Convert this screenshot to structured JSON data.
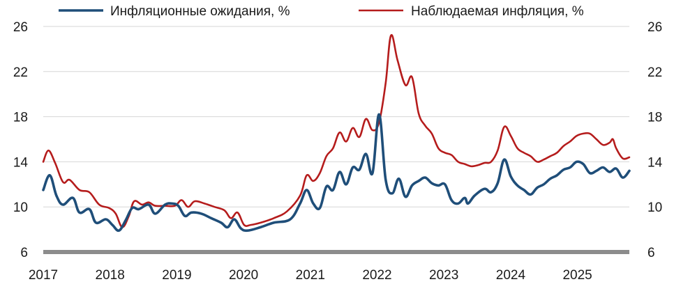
{
  "chart_data": {
    "type": "line",
    "title": "",
    "xlabel": "",
    "ylabel": "",
    "ylim": [
      6,
      26
    ],
    "y_ticks": [
      "6",
      "10",
      "14",
      "18",
      "22",
      "26"
    ],
    "x_ticks": [
      "2017",
      "2018",
      "2019",
      "2020",
      "2021",
      "2022",
      "2023",
      "2024",
      "2025"
    ],
    "xlim": [
      2017.0,
      2025.9
    ],
    "grid": "horizontal",
    "legend": "top",
    "series": [
      {
        "name": "Инфляционные ожидания, %",
        "color": "#1f4e79",
        "points": [
          [
            2017.0,
            11.5
          ],
          [
            2017.1,
            12.8
          ],
          [
            2017.2,
            11.0
          ],
          [
            2017.3,
            10.2
          ],
          [
            2017.45,
            10.8
          ],
          [
            2017.55,
            9.5
          ],
          [
            2017.7,
            9.8
          ],
          [
            2017.8,
            8.6
          ],
          [
            2017.95,
            8.9
          ],
          [
            2018.05,
            8.4
          ],
          [
            2018.15,
            7.9
          ],
          [
            2018.25,
            8.8
          ],
          [
            2018.35,
            9.9
          ],
          [
            2018.45,
            9.8
          ],
          [
            2018.6,
            10.2
          ],
          [
            2018.7,
            9.4
          ],
          [
            2018.85,
            10.2
          ],
          [
            2018.95,
            10.3
          ],
          [
            2019.05,
            10.1
          ],
          [
            2019.15,
            9.2
          ],
          [
            2019.25,
            9.5
          ],
          [
            2019.4,
            9.4
          ],
          [
            2019.55,
            9.0
          ],
          [
            2019.7,
            8.6
          ],
          [
            2019.8,
            8.2
          ],
          [
            2019.9,
            8.9
          ],
          [
            2020.0,
            8.1
          ],
          [
            2020.1,
            7.9
          ],
          [
            2020.3,
            8.2
          ],
          [
            2020.5,
            8.6
          ],
          [
            2020.75,
            8.9
          ],
          [
            2020.9,
            10.3
          ],
          [
            2021.0,
            11.5
          ],
          [
            2021.1,
            10.3
          ],
          [
            2021.2,
            9.9
          ],
          [
            2021.3,
            11.8
          ],
          [
            2021.4,
            11.5
          ],
          [
            2021.5,
            13.1
          ],
          [
            2021.6,
            12.0
          ],
          [
            2021.7,
            13.5
          ],
          [
            2021.8,
            13.3
          ],
          [
            2021.9,
            14.7
          ],
          [
            2022.0,
            13.0
          ],
          [
            2022.1,
            18.2
          ],
          [
            2022.2,
            12.4
          ],
          [
            2022.3,
            11.2
          ],
          [
            2022.4,
            12.5
          ],
          [
            2022.5,
            10.9
          ],
          [
            2022.6,
            11.9
          ],
          [
            2022.7,
            12.3
          ],
          [
            2022.8,
            12.6
          ],
          [
            2022.9,
            12.1
          ],
          [
            2023.0,
            11.9
          ],
          [
            2023.1,
            12.0
          ],
          [
            2023.2,
            10.6
          ],
          [
            2023.3,
            10.3
          ],
          [
            2023.4,
            10.8
          ],
          [
            2023.45,
            10.3
          ],
          [
            2023.55,
            11.0
          ],
          [
            2023.7,
            11.6
          ],
          [
            2023.8,
            11.3
          ],
          [
            2023.9,
            12.1
          ],
          [
            2024.0,
            14.2
          ],
          [
            2024.1,
            12.7
          ],
          [
            2024.2,
            11.9
          ],
          [
            2024.3,
            11.5
          ],
          [
            2024.4,
            11.1
          ],
          [
            2024.5,
            11.7
          ],
          [
            2024.6,
            12.0
          ],
          [
            2024.7,
            12.5
          ],
          [
            2024.8,
            12.8
          ],
          [
            2024.9,
            13.3
          ],
          [
            2025.0,
            13.5
          ],
          [
            2025.1,
            14.0
          ],
          [
            2025.2,
            13.8
          ],
          [
            2025.3,
            13.0
          ],
          [
            2025.4,
            13.2
          ],
          [
            2025.5,
            13.5
          ],
          [
            2025.6,
            13.1
          ],
          [
            2025.7,
            13.4
          ],
          [
            2025.8,
            12.6
          ],
          [
            2025.9,
            13.2
          ]
        ]
      },
      {
        "name": "Наблюдаемая инфляция, %",
        "color": "#b51c1c",
        "points": [
          [
            2017.0,
            14.0
          ],
          [
            2017.08,
            15.0
          ],
          [
            2017.18,
            13.9
          ],
          [
            2017.3,
            12.2
          ],
          [
            2017.4,
            12.4
          ],
          [
            2017.55,
            11.5
          ],
          [
            2017.7,
            11.3
          ],
          [
            2017.85,
            10.2
          ],
          [
            2018.0,
            9.9
          ],
          [
            2018.1,
            9.4
          ],
          [
            2018.2,
            8.2
          ],
          [
            2018.3,
            9.2
          ],
          [
            2018.38,
            10.5
          ],
          [
            2018.5,
            10.2
          ],
          [
            2018.6,
            10.4
          ],
          [
            2018.7,
            10.1
          ],
          [
            2018.85,
            10.1
          ],
          [
            2019.0,
            10.1
          ],
          [
            2019.1,
            10.6
          ],
          [
            2019.2,
            10.0
          ],
          [
            2019.3,
            10.5
          ],
          [
            2019.45,
            10.3
          ],
          [
            2019.6,
            10.0
          ],
          [
            2019.75,
            9.7
          ],
          [
            2019.85,
            9.0
          ],
          [
            2019.95,
            9.5
          ],
          [
            2020.05,
            8.4
          ],
          [
            2020.15,
            8.4
          ],
          [
            2020.3,
            8.6
          ],
          [
            2020.5,
            9.0
          ],
          [
            2020.7,
            9.6
          ],
          [
            2020.9,
            11.0
          ],
          [
            2021.0,
            12.8
          ],
          [
            2021.1,
            12.3
          ],
          [
            2021.2,
            13.0
          ],
          [
            2021.3,
            14.5
          ],
          [
            2021.4,
            15.2
          ],
          [
            2021.5,
            16.6
          ],
          [
            2021.6,
            15.8
          ],
          [
            2021.7,
            17.0
          ],
          [
            2021.8,
            16.2
          ],
          [
            2021.9,
            17.8
          ],
          [
            2022.0,
            16.8
          ],
          [
            2022.1,
            17.5
          ],
          [
            2022.2,
            21.0
          ],
          [
            2022.28,
            25.2
          ],
          [
            2022.38,
            23.0
          ],
          [
            2022.5,
            20.8
          ],
          [
            2022.6,
            21.5
          ],
          [
            2022.7,
            18.3
          ],
          [
            2022.8,
            17.2
          ],
          [
            2022.9,
            16.5
          ],
          [
            2023.0,
            15.2
          ],
          [
            2023.1,
            14.8
          ],
          [
            2023.2,
            14.6
          ],
          [
            2023.3,
            14.0
          ],
          [
            2023.4,
            13.8
          ],
          [
            2023.5,
            13.6
          ],
          [
            2023.6,
            13.7
          ],
          [
            2023.7,
            13.9
          ],
          [
            2023.8,
            14.0
          ],
          [
            2023.9,
            15.0
          ],
          [
            2024.0,
            17.1
          ],
          [
            2024.1,
            16.3
          ],
          [
            2024.2,
            15.2
          ],
          [
            2024.3,
            14.8
          ],
          [
            2024.4,
            14.5
          ],
          [
            2024.5,
            14.0
          ],
          [
            2024.6,
            14.2
          ],
          [
            2024.7,
            14.5
          ],
          [
            2024.8,
            14.8
          ],
          [
            2024.9,
            15.4
          ],
          [
            2025.0,
            15.8
          ],
          [
            2025.1,
            16.3
          ],
          [
            2025.2,
            16.5
          ],
          [
            2025.3,
            16.5
          ],
          [
            2025.4,
            16.0
          ],
          [
            2025.5,
            15.5
          ],
          [
            2025.6,
            15.7
          ],
          [
            2025.65,
            16.0
          ],
          [
            2025.7,
            15.2
          ],
          [
            2025.8,
            14.3
          ],
          [
            2025.9,
            14.4
          ]
        ]
      }
    ]
  }
}
